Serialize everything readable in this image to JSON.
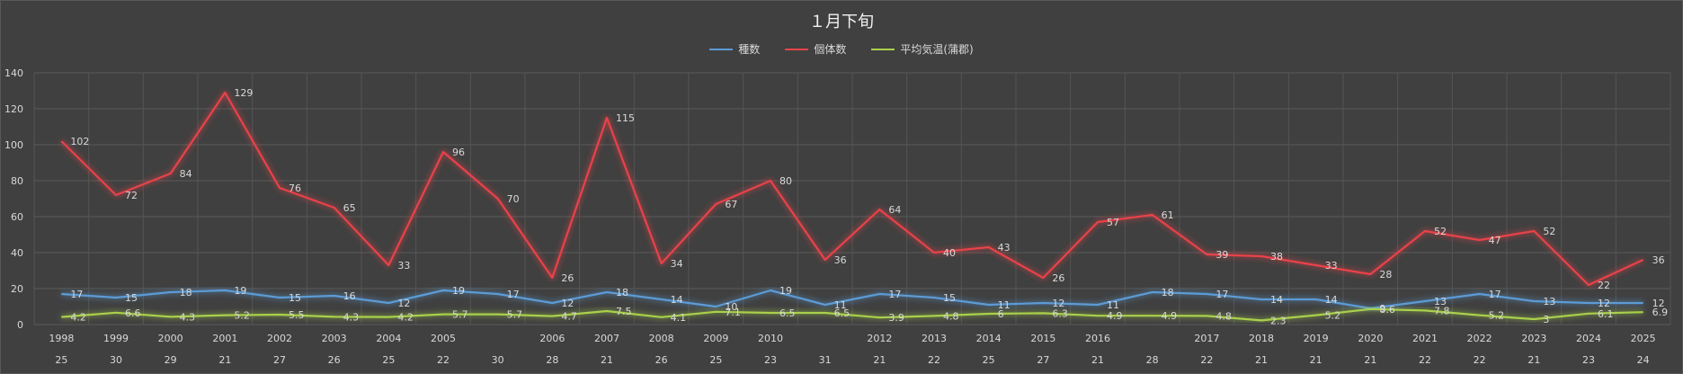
{
  "chart_data": {
    "type": "line",
    "title": "１月下旬",
    "categories": [
      "1998",
      "1999",
      "2000",
      "2001",
      "2002",
      "2003",
      "2004",
      "2005",
      "",
      "2006",
      "2007",
      "2008",
      "2009",
      "2010",
      "",
      "2012",
      "2013",
      "2014",
      "2015",
      "2016",
      "",
      "2017",
      "2018",
      "2019",
      "2020",
      "2021",
      "2022",
      "2023",
      "2024",
      "2025"
    ],
    "second_row": [
      "25",
      "30",
      "29",
      "21",
      "27",
      "26",
      "25",
      "22",
      "30",
      "28",
      "21",
      "26",
      "25",
      "23",
      "31",
      "21",
      "22",
      "25",
      "27",
      "21",
      "28",
      "22",
      "21",
      "21",
      "21",
      "22",
      "22",
      "21",
      "23",
      "24"
    ],
    "ylim": [
      0,
      140
    ],
    "yticks": [
      0,
      20,
      40,
      60,
      80,
      100,
      120,
      140
    ],
    "grid": true,
    "legend_position": "top",
    "series": [
      {
        "name": "種数",
        "color": "#5b9bd5",
        "values": [
          17,
          15,
          18,
          19,
          15,
          16,
          12,
          19,
          17,
          12,
          18,
          14,
          10,
          19,
          11,
          17,
          15,
          11,
          12,
          11,
          18,
          17,
          14,
          14,
          9,
          13,
          17,
          13,
          12,
          12
        ]
      },
      {
        "name": "個体数",
        "color": "#e8434a",
        "values": [
          102,
          72,
          84,
          129,
          76,
          65,
          33,
          96,
          70,
          26,
          115,
          34,
          67,
          80,
          36,
          64,
          40,
          43,
          26,
          57,
          61,
          39,
          38,
          33,
          28,
          52,
          47,
          52,
          22,
          36
        ]
      },
      {
        "name": "平均気温(蒲郡)",
        "color": "#a9d04b",
        "values": [
          4.2,
          6.6,
          4.3,
          5.2,
          5.5,
          4.3,
          4.2,
          5.7,
          5.7,
          4.7,
          7.5,
          4.1,
          7.1,
          6.5,
          6.5,
          3.9,
          4.8,
          6,
          6.3,
          4.9,
          4.9,
          4.8,
          2.3,
          5.2,
          8.6,
          7.8,
          5.2,
          3,
          6.1,
          6.9
        ]
      }
    ]
  }
}
